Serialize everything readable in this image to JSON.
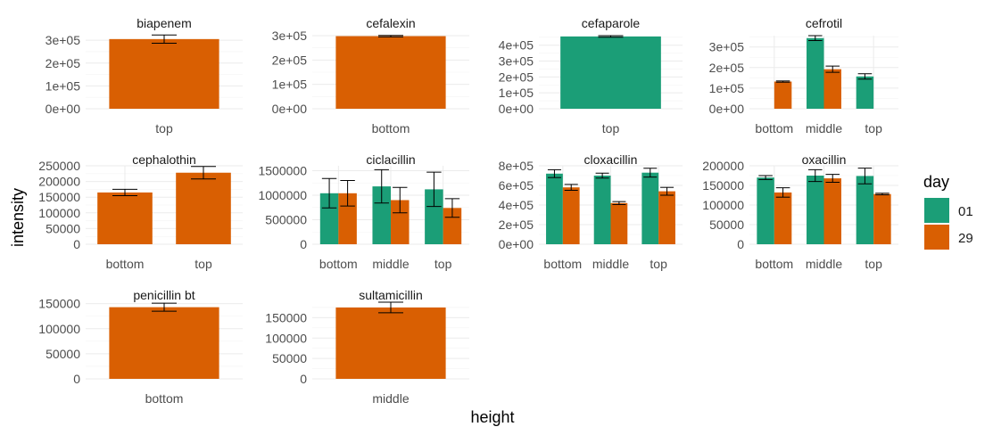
{
  "chart_data": {
    "type": "bar",
    "xlabel": "height",
    "ylabel": "intensity",
    "legend": {
      "title": "day",
      "placement": "right",
      "entries": [
        {
          "label": "01",
          "color": "#1b9e77"
        },
        {
          "label": "29",
          "color": "#d95f02"
        }
      ]
    },
    "panels": [
      {
        "title": "biapenem",
        "ylim": [
          0,
          320000
        ],
        "yticks": [
          0,
          100000,
          200000,
          300000
        ],
        "ytick_labels": [
          "0e+00",
          "1e+05",
          "2e+05",
          "3e+05"
        ],
        "categories": [
          "top"
        ],
        "bars": [
          {
            "category": "top",
            "day": "29",
            "value": 305000,
            "err": 18000
          }
        ]
      },
      {
        "title": "cefalexin",
        "ylim": [
          0,
          300000
        ],
        "yticks": [
          0,
          100000,
          200000,
          300000
        ],
        "ytick_labels": [
          "0e+00",
          "1e+05",
          "2e+05",
          "3e+05"
        ],
        "categories": [
          "bottom"
        ],
        "bars": [
          {
            "category": "bottom",
            "day": "29",
            "value": 298000,
            "err": 3000
          }
        ]
      },
      {
        "title": "cefaparole",
        "ylim": [
          0,
          460000
        ],
        "yticks": [
          0,
          100000,
          200000,
          300000,
          400000
        ],
        "ytick_labels": [
          "0e+00",
          "1e+05",
          "2e+05",
          "3e+05",
          "4e+05"
        ],
        "categories": [
          "top"
        ],
        "bars": [
          {
            "category": "top",
            "day": "01",
            "value": 455000,
            "err": 5000
          }
        ]
      },
      {
        "title": "cefrotil",
        "ylim": [
          0,
          355000
        ],
        "yticks": [
          0,
          100000,
          200000,
          300000
        ],
        "ytick_labels": [
          "0e+00",
          "1e+05",
          "2e+05",
          "3e+05"
        ],
        "categories": [
          "bottom",
          "middle",
          "top"
        ],
        "bars": [
          {
            "category": "bottom",
            "day": "29",
            "value": 132000,
            "err": 3000
          },
          {
            "category": "middle",
            "day": "01",
            "value": 343000,
            "err": 12000
          },
          {
            "category": "middle",
            "day": "29",
            "value": 192000,
            "err": 15000
          },
          {
            "category": "top",
            "day": "01",
            "value": 157000,
            "err": 13000
          }
        ]
      },
      {
        "title": "cephalothin",
        "ylim": [
          0,
          250000
        ],
        "yticks": [
          0,
          50000,
          100000,
          150000,
          200000,
          250000
        ],
        "ytick_labels": [
          "0",
          "50000",
          "100000",
          "150000",
          "200000",
          "250000"
        ],
        "categories": [
          "bottom",
          "top"
        ],
        "bars": [
          {
            "category": "bottom",
            "day": "29",
            "value": 165000,
            "err": 10000
          },
          {
            "category": "top",
            "day": "29",
            "value": 228000,
            "err": 20000
          }
        ]
      },
      {
        "title": "ciclacillin",
        "ylim": [
          0,
          1600000
        ],
        "yticks": [
          0,
          500000,
          1000000,
          1500000
        ],
        "ytick_labels": [
          "0",
          "500000",
          "1000000",
          "1500000"
        ],
        "categories": [
          "bottom",
          "middle",
          "top"
        ],
        "bars": [
          {
            "category": "bottom",
            "day": "01",
            "value": 1040000,
            "err": 300000
          },
          {
            "category": "bottom",
            "day": "29",
            "value": 1040000,
            "err": 260000
          },
          {
            "category": "middle",
            "day": "01",
            "value": 1180000,
            "err": 340000
          },
          {
            "category": "middle",
            "day": "29",
            "value": 900000,
            "err": 260000
          },
          {
            "category": "top",
            "day": "01",
            "value": 1120000,
            "err": 350000
          },
          {
            "category": "top",
            "day": "29",
            "value": 740000,
            "err": 190000
          }
        ]
      },
      {
        "title": "cloxacillin",
        "ylim": [
          0,
          800000
        ],
        "yticks": [
          0,
          200000,
          400000,
          600000,
          800000
        ],
        "ytick_labels": [
          "0e+00",
          "2e+05",
          "4e+05",
          "6e+05",
          "8e+05"
        ],
        "categories": [
          "bottom",
          "middle",
          "top"
        ],
        "bars": [
          {
            "category": "bottom",
            "day": "01",
            "value": 720000,
            "err": 40000
          },
          {
            "category": "bottom",
            "day": "29",
            "value": 580000,
            "err": 30000
          },
          {
            "category": "middle",
            "day": "01",
            "value": 700000,
            "err": 25000
          },
          {
            "category": "middle",
            "day": "29",
            "value": 420000,
            "err": 15000
          },
          {
            "category": "top",
            "day": "01",
            "value": 730000,
            "err": 45000
          },
          {
            "category": "top",
            "day": "29",
            "value": 540000,
            "err": 40000
          }
        ]
      },
      {
        "title": "oxacillin",
        "ylim": [
          0,
          200000
        ],
        "yticks": [
          0,
          50000,
          100000,
          150000,
          200000
        ],
        "ytick_labels": [
          "0",
          "50000",
          "100000",
          "150000",
          "200000"
        ],
        "categories": [
          "bottom",
          "middle",
          "top"
        ],
        "bars": [
          {
            "category": "bottom",
            "day": "01",
            "value": 170000,
            "err": 5000
          },
          {
            "category": "bottom",
            "day": "29",
            "value": 132000,
            "err": 12000
          },
          {
            "category": "middle",
            "day": "01",
            "value": 175000,
            "err": 15000
          },
          {
            "category": "middle",
            "day": "29",
            "value": 168000,
            "err": 10000
          },
          {
            "category": "top",
            "day": "01",
            "value": 174000,
            "err": 20000
          },
          {
            "category": "top",
            "day": "29",
            "value": 128000,
            "err": 2000
          }
        ]
      },
      {
        "title": "penicillin bt",
        "ylim": [
          0,
          153000
        ],
        "yticks": [
          0,
          50000,
          100000,
          150000
        ],
        "ytick_labels": [
          "0",
          "50000",
          "100000",
          "150000"
        ],
        "categories": [
          "bottom"
        ],
        "bars": [
          {
            "category": "bottom",
            "day": "29",
            "value": 143000,
            "err": 8000
          }
        ]
      },
      {
        "title": "sultamicillin",
        "ylim": [
          0,
          188000
        ],
        "yticks": [
          0,
          50000,
          100000,
          150000
        ],
        "ytick_labels": [
          "0",
          "50000",
          "100000",
          "150000"
        ],
        "categories": [
          "middle"
        ],
        "bars": [
          {
            "category": "middle",
            "day": "29",
            "value": 175000,
            "err": 13000
          }
        ]
      }
    ]
  }
}
